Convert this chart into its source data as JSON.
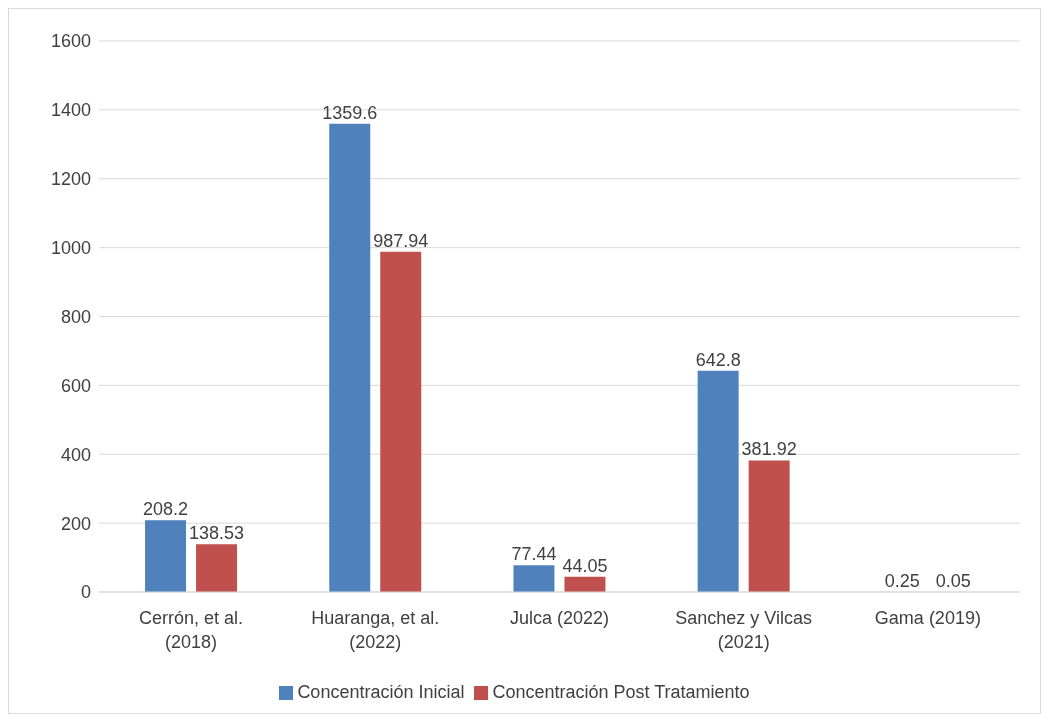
{
  "chart_data": {
    "type": "bar",
    "categories": [
      "Cerrón, et al. (2018)",
      "Huaranga, et al. (2022)",
      "Julca (2022)",
      "Sanchez y Vilcas (2021)",
      "Gama (2019)"
    ],
    "series": [
      {
        "name": "Concentración Inicial",
        "color": "#4f81bd",
        "values": [
          208.2,
          1359.6,
          77.44,
          642.8,
          0.25
        ]
      },
      {
        "name": "Concentración Post Tratamiento",
        "color": "#c0504d",
        "values": [
          138.53,
          987.94,
          44.05,
          381.92,
          0.05
        ]
      }
    ],
    "ylim": [
      0,
      1600
    ],
    "yticks": [
      0,
      200,
      400,
      600,
      800,
      1000,
      1200,
      1400,
      1600
    ],
    "grid": "y",
    "legend": "bottom",
    "data_labels": true
  }
}
